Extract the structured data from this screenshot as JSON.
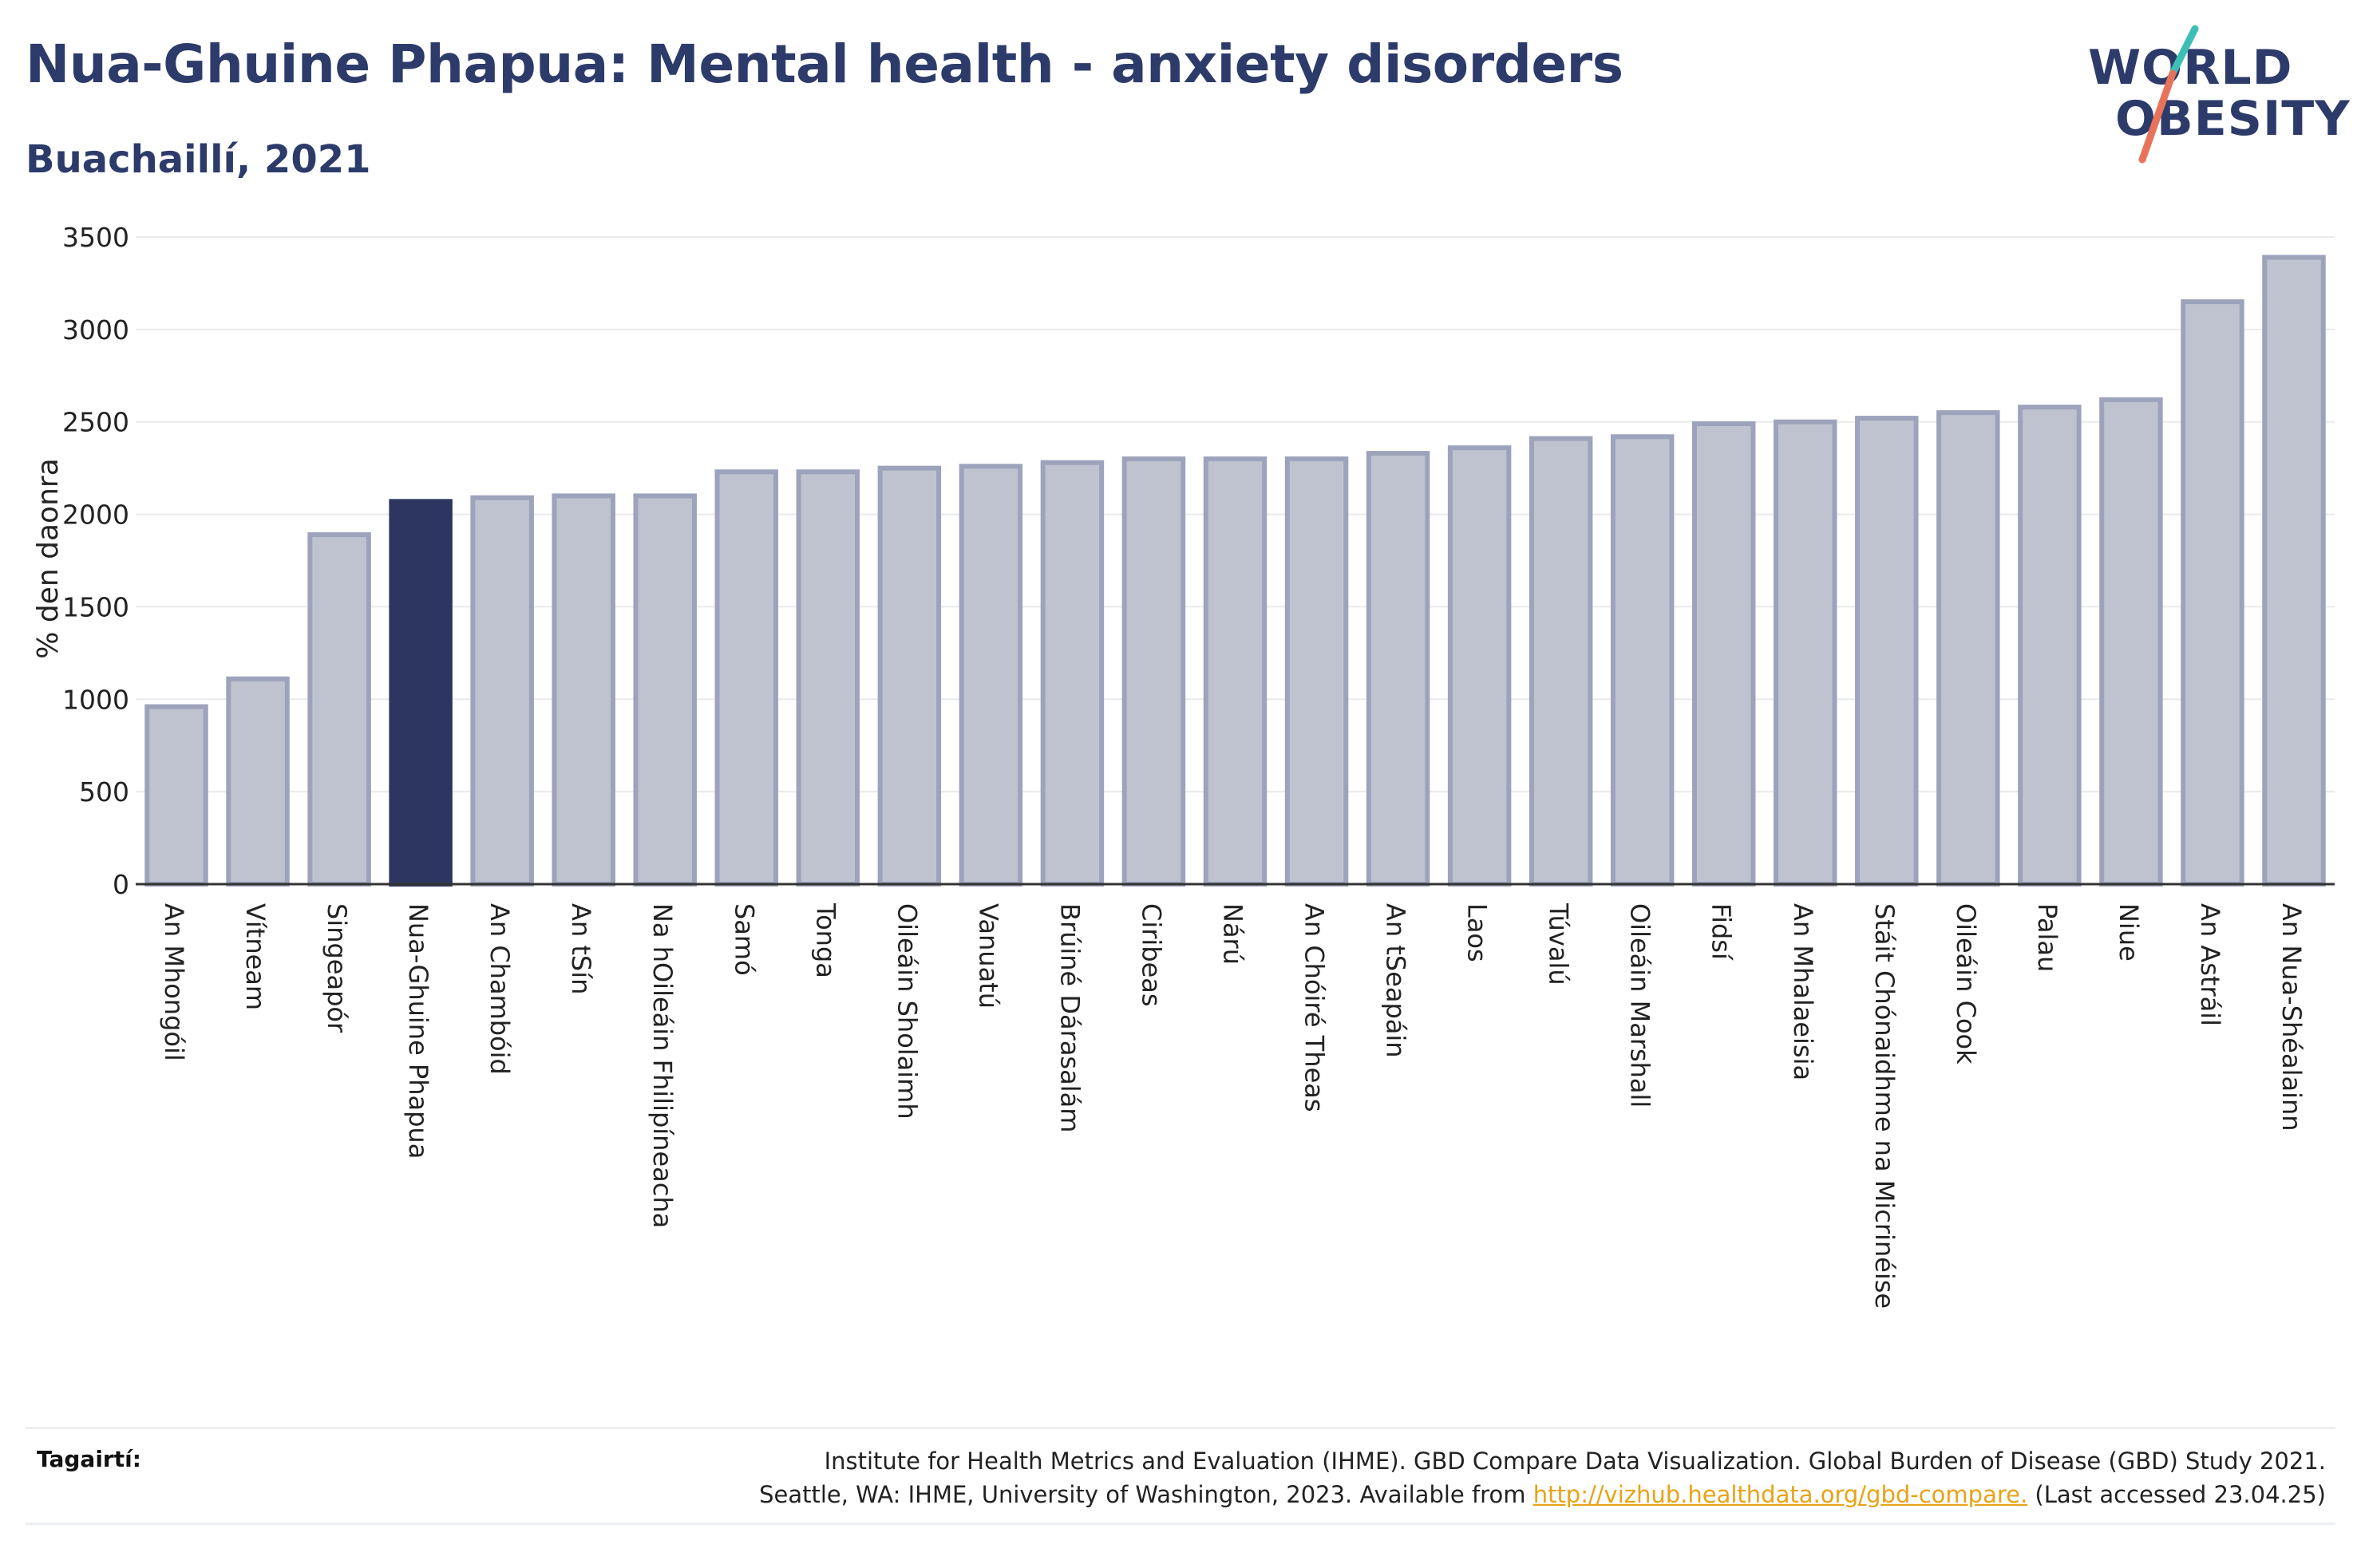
{
  "header": {
    "title": "Nua-Ghuine Phapua: Mental health - anxiety disorders",
    "subtitle": "Buachaillí, 2021"
  },
  "logo": {
    "line1": "WORLD",
    "line2": "OBESITY",
    "accent_teal": "#3cbfb4",
    "accent_coral": "#e8735a"
  },
  "chart_data": {
    "type": "bar",
    "title": "Nua-Ghuine Phapua: Mental health - anxiety disorders",
    "subtitle": "Buachaillí, 2021",
    "ylabel": "% den daonra",
    "xlabel": "",
    "ylim": [
      0,
      3500
    ],
    "yticks": [
      0,
      500,
      1000,
      1500,
      2000,
      2500,
      3000,
      3500
    ],
    "grid": true,
    "categories": [
      "An Mhongóil",
      "Vítneam",
      "Singeapór",
      "Nua-Ghuine Phapua",
      "An Chambóid",
      "An tSín",
      "Na hOileáin Fhilipíneacha",
      "Samó",
      "Tonga",
      "Oileáin Sholaimh",
      "Vanuatú",
      "Brúiné Dárasalám",
      "Ciribeas",
      "Nárú",
      "An Chóiré Theas",
      "An tSeapáin",
      "Laos",
      "Túvalú",
      "Oileáin Marshall",
      "Fidsí",
      "An Mhalaeisia",
      "Stáit Chónaidhme na Micrinéise",
      "Oileáin Cook",
      "Palau",
      "Niue",
      "An Astráil",
      "An Nua-Shéalainn"
    ],
    "values": [
      960,
      1110,
      1890,
      2070,
      2090,
      2100,
      2100,
      2230,
      2230,
      2250,
      2260,
      2280,
      2300,
      2300,
      2300,
      2330,
      2360,
      2410,
      2420,
      2490,
      2500,
      2520,
      2550,
      2580,
      2620,
      3150,
      3390
    ],
    "highlight": "Nua-Ghuine Phapua",
    "colors": {
      "bar": "#bfc3d0",
      "bar_border": "#9ca3bb",
      "highlight": "#2d3660",
      "axis": "#333333",
      "grid": "#e9eaee"
    }
  },
  "footer": {
    "label": "Tagairtí:",
    "line1": "Institute for Health Metrics and Evaluation (IHME). GBD Compare Data Visualization. Global Burden of Disease (GBD) Study 2021.",
    "line2_prefix": "Seattle, WA: IHME, University of Washington, 2023. Available from ",
    "link": "http://vizhub.healthdata.org/gbd-compare.",
    "line2_suffix": " (Last accessed 23.04.25)"
  }
}
